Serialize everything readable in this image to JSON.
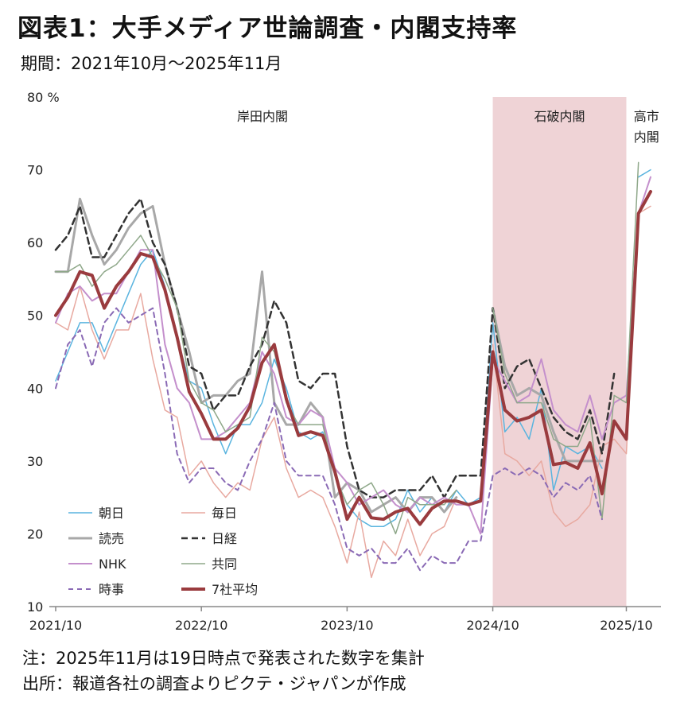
{
  "header": {
    "title": "図表1：大手メディア世論調査・内閣支持率",
    "subtitle": "期間：2021年10月～2025年11月"
  },
  "footer": {
    "note": "注：2025年11月は19日時点で発表された数字を集計",
    "source": "出所：報道各社の調査よりピクテ・ジャパンが作成"
  },
  "chart_data": {
    "type": "line",
    "title": "大手メディア世論調査・内閣支持率",
    "ylabel": "%",
    "y_unit_label": "80 %",
    "ylim": [
      10,
      80
    ],
    "yticks": [
      10,
      20,
      30,
      40,
      50,
      60,
      70
    ],
    "x_count": 50,
    "xticks": [
      {
        "index": 0,
        "label": "2021/10"
      },
      {
        "index": 12,
        "label": "2022/10"
      },
      {
        "index": 24,
        "label": "2023/10"
      },
      {
        "index": 36,
        "label": "2024/10"
      },
      {
        "index": 47,
        "label": "2025/10"
      }
    ],
    "periods": [
      {
        "name": "岸田内閣",
        "start": 0,
        "end": 36,
        "color": "#ffffff",
        "label_lines": [
          "岸田内閣"
        ]
      },
      {
        "name": "石破内閣",
        "start": 36,
        "end": 47,
        "color": "#efd3d6",
        "label_lines": [
          "石破内閣"
        ]
      },
      {
        "name": "高市内閣",
        "start": 47,
        "end": 49,
        "color": "#ffffff",
        "label_lines": [
          "高市",
          "内閣"
        ]
      }
    ],
    "series": [
      {
        "name": "朝日",
        "color": "#5ab4df",
        "dash": "",
        "width": 1.5,
        "values": [
          41,
          45,
          49,
          49,
          45,
          49,
          53,
          57,
          59,
          54,
          47,
          41,
          40,
          35,
          31,
          35,
          35,
          38,
          44,
          40,
          34,
          33,
          34,
          28,
          24,
          22,
          21,
          21,
          22,
          26,
          23,
          25,
          23,
          26,
          24,
          25,
          49,
          34,
          36,
          33,
          40,
          26,
          32,
          31,
          32,
          29,
          null,
          null,
          69,
          70
        ]
      },
      {
        "name": "毎日",
        "color": "#e8a9a0",
        "dash": "",
        "width": 1.5,
        "values": [
          49,
          48,
          54,
          48,
          44,
          48,
          48,
          53,
          44,
          37,
          36,
          28,
          30,
          27,
          25,
          27,
          26,
          33,
          36,
          29,
          25,
          26,
          25,
          21,
          16,
          23,
          14,
          19,
          17,
          22,
          17,
          20,
          21,
          25,
          null,
          null,
          46,
          31,
          30,
          28,
          30,
          23,
          21,
          22,
          24,
          32,
          33,
          31,
          64,
          65
        ]
      },
      {
        "name": "読売",
        "color": "#a8a8a8",
        "dash": "",
        "width": 3,
        "values": [
          56,
          56,
          66,
          61,
          57,
          59,
          62,
          64,
          65,
          57,
          51,
          45,
          38,
          39,
          39,
          41,
          42,
          56,
          38,
          35,
          35,
          38,
          36,
          25,
          27,
          26,
          23,
          24,
          25,
          23,
          25,
          25,
          23,
          25,
          null,
          null,
          51,
          43,
          39,
          40,
          39,
          34,
          30,
          30,
          30,
          30,
          null,
          null,
          71,
          null
        ]
      },
      {
        "name": "日経",
        "color": "#333333",
        "dash": "8,5",
        "width": 2.5,
        "values": [
          59,
          61,
          65,
          58,
          58,
          61,
          64,
          66,
          60,
          57,
          51,
          43,
          42,
          37,
          39,
          39,
          43,
          46,
          52,
          49,
          41,
          40,
          42,
          42,
          32,
          26,
          25,
          25,
          26,
          26,
          26,
          28,
          25,
          28,
          28,
          28,
          51,
          40,
          43,
          44,
          40,
          36,
          34,
          33,
          37,
          31,
          42,
          null,
          null,
          null
        ]
      },
      {
        "name": "NHK",
        "color": "#c48fcc",
        "dash": "",
        "width": 2,
        "values": [
          49,
          53,
          54,
          52,
          53,
          53,
          56,
          59,
          59,
          46,
          40,
          38,
          33,
          33,
          34,
          36,
          38,
          45,
          42,
          36,
          35,
          37,
          36,
          29,
          27,
          24,
          25,
          26,
          24,
          23,
          25,
          24,
          25,
          24,
          24,
          20,
          44,
          41,
          38,
          39,
          44,
          37,
          35,
          34,
          39,
          33,
          38,
          39,
          64,
          69
        ]
      },
      {
        "name": "共同",
        "color": "#8fa88a",
        "dash": "",
        "width": 1.5,
        "values": [
          56,
          56,
          57,
          54,
          56,
          57,
          59,
          61,
          58,
          55,
          51,
          41,
          38,
          37,
          34,
          35,
          36,
          47,
          45,
          38,
          35,
          35,
          35,
          28,
          24,
          26,
          27,
          24,
          20,
          25,
          24,
          24,
          24,
          26,
          null,
          null,
          51,
          42,
          38,
          38,
          38,
          33,
          32,
          32,
          36,
          22,
          39,
          38,
          71,
          null
        ]
      },
      {
        "name": "時事",
        "color": "#8a6ab5",
        "dash": "6,5",
        "width": 2,
        "values": [
          40,
          46,
          48,
          43,
          49,
          51,
          49,
          50,
          51,
          42,
          31,
          27,
          29,
          29,
          27,
          26,
          30,
          33,
          38,
          30,
          28,
          28,
          28,
          24,
          18,
          17,
          18,
          16,
          16,
          18,
          15,
          17,
          16,
          16,
          19,
          19,
          28,
          29,
          28,
          29,
          28,
          25,
          27,
          26,
          28,
          22,
          null,
          null,
          null,
          null
        ]
      },
      {
        "name": "7社平均",
        "color": "#9a3b3e",
        "dash": "",
        "width": 4,
        "values": [
          50,
          52.5,
          56,
          55.5,
          51,
          54,
          56,
          58.5,
          58,
          53.5,
          47,
          39.5,
          36.5,
          33,
          33,
          34.5,
          37.5,
          43.5,
          46,
          38.5,
          33.5,
          34,
          33.5,
          28.5,
          22,
          25,
          22.2,
          22,
          23,
          23.5,
          21.3,
          23.5,
          24.5,
          24.5,
          24,
          24.5,
          45,
          37,
          35.5,
          36,
          37,
          29.5,
          29.8,
          29,
          32.5,
          25.5,
          35.5,
          33,
          64,
          67
        ]
      }
    ]
  }
}
